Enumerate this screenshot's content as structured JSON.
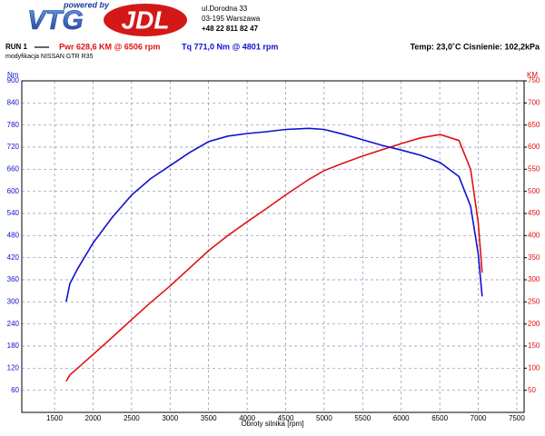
{
  "logo": {
    "tagline": "powered by",
    "brand_left": "VTG",
    "brand_right": "JDL"
  },
  "address": [
    "ul.Dorodna 33",
    "03-195 Warszawa",
    "+48 22 811 82 47"
  ],
  "run": "RUN 1",
  "conditions": "Temp: 23,0˚C   Cisnienie: 102,2kPa",
  "subtitle": "modyfikacja NISSAN GTR R35",
  "chart_data": {
    "type": "line",
    "x_label": "Obroty silnika [rpm]",
    "y_label": "Nm",
    "y2_label": "KM",
    "x": [
      1650,
      1700,
      1800,
      2000,
      2250,
      2500,
      2750,
      3000,
      3250,
      3500,
      3750,
      4000,
      4250,
      4500,
      4801,
      5000,
      5250,
      5500,
      5750,
      6000,
      6250,
      6506,
      6750,
      6900,
      7000,
      7050
    ],
    "series": [
      {
        "name": "Pwr  628,6 KM @ 6506 rpm",
        "color": "#e01010",
        "axis": "y2",
        "values": [
          70,
          85,
          100,
          131,
          170,
          210,
          249,
          286,
          326,
          366,
          400,
          431,
          461,
          492,
          527,
          547,
          564,
          580,
          594,
          608,
          621,
          628.6,
          615,
          550,
          429,
          316
        ]
      },
      {
        "name": "Tq 771,0 Nm @ 4801 rpm",
        "color": "#1010d0",
        "axis": "y",
        "values": [
          300,
          350,
          390,
          460,
          530,
          590,
          635,
          670,
          705,
          735,
          750,
          757,
          762,
          768,
          771,
          768,
          755,
          740,
          725,
          712,
          698,
          678,
          640,
          560,
          430,
          315
        ]
      }
    ],
    "xlim": [
      1075,
      7595
    ],
    "xticks": [
      1500,
      2000,
      2500,
      3000,
      3500,
      4000,
      4500,
      5000,
      5500,
      6000,
      6500,
      7000,
      7500
    ],
    "ylim": [
      0,
      900
    ],
    "yticks": [
      60,
      120,
      180,
      240,
      300,
      360,
      420,
      480,
      540,
      600,
      660,
      720,
      780,
      840,
      900
    ],
    "y2lim": [
      0,
      750
    ],
    "y2ticks": [
      50,
      100,
      150,
      200,
      250,
      300,
      350,
      400,
      450,
      500,
      550,
      600,
      650,
      700,
      750
    ],
    "grid": true
  }
}
